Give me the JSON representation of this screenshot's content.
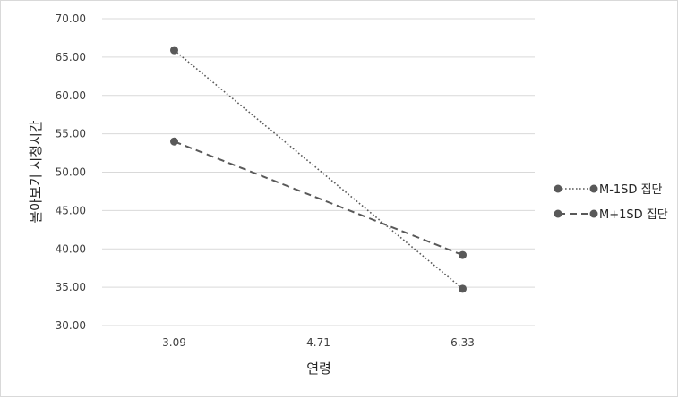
{
  "chart_data": {
    "type": "line",
    "title": "",
    "xlabel": "연령",
    "ylabel": "몰아보기 시청시간",
    "categories": [
      "3.09",
      "4.71",
      "6.33"
    ],
    "x": [
      3.09,
      6.33
    ],
    "ylim": [
      30,
      70
    ],
    "yticks": [
      "30.00",
      "35.00",
      "40.00",
      "45.00",
      "50.00",
      "55.00",
      "60.00",
      "65.00",
      "70.00"
    ],
    "grid": true,
    "legend_position": "right",
    "series": [
      {
        "name": "M-1SD 집단",
        "x": [
          3.09,
          6.33
        ],
        "values": [
          65.9,
          34.8
        ],
        "line_style": "dotted",
        "color": "#595959"
      },
      {
        "name": "M+1SD 집단",
        "x": [
          3.09,
          6.33
        ],
        "values": [
          54.0,
          39.2
        ],
        "line_style": "dashed",
        "color": "#595959"
      }
    ]
  }
}
